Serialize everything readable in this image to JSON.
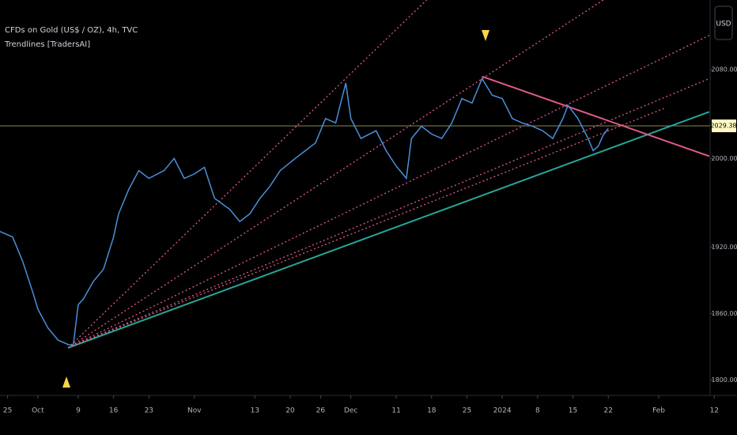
{
  "chart_data": {
    "type": "line",
    "title": "CFDs on Gold (US$ / OZ), 4h, TVC",
    "subtitle": "Trendlines [TradersAI]",
    "currency": "USD",
    "xlim": [
      -1.5,
      144.5
    ],
    "xticks": [
      {
        "value": 0,
        "label": "25"
      },
      {
        "value": 6,
        "label": "Oct"
      },
      {
        "value": 14,
        "label": "9"
      },
      {
        "value": 21,
        "label": "16"
      },
      {
        "value": 28,
        "label": "23"
      },
      {
        "value": 37,
        "label": "Nov"
      },
      {
        "value": 49,
        "label": "13"
      },
      {
        "value": 56,
        "label": "20"
      },
      {
        "value": 62,
        "label": "26"
      },
      {
        "value": 68,
        "label": "Dec"
      },
      {
        "value": 77,
        "label": "11"
      },
      {
        "value": 84,
        "label": "18"
      },
      {
        "value": 91,
        "label": "25"
      },
      {
        "value": 98,
        "label": "2024"
      },
      {
        "value": 105,
        "label": "8"
      },
      {
        "value": 112,
        "label": "15"
      },
      {
        "value": 119,
        "label": "22"
      },
      {
        "value": 129,
        "label": "Feb"
      },
      {
        "value": 140,
        "label": "12"
      }
    ],
    "ylim": [
      1786,
      2143
    ],
    "yticks": [
      {
        "value": 1800,
        "label": "1800.00"
      },
      {
        "value": 1860,
        "label": "1860.00"
      },
      {
        "value": 1920,
        "label": "1920.00"
      },
      {
        "value": 2000,
        "label": "2000.00"
      },
      {
        "value": 2080,
        "label": "2080.00"
      }
    ],
    "series": [
      {
        "color": "#4a90d9",
        "x": [
          -1.5,
          1,
          3,
          5,
          6,
          8,
          10,
          12,
          13,
          14,
          15,
          17,
          19,
          21,
          22,
          24,
          26,
          28,
          31,
          33,
          35,
          37,
          39,
          41,
          44,
          46,
          48,
          50,
          52,
          54,
          57,
          59,
          61,
          63,
          65,
          67,
          68,
          70,
          73,
          75,
          77,
          79,
          80,
          82,
          84,
          86,
          88,
          90,
          92,
          94,
          96,
          98,
          100,
          102,
          104,
          106,
          108,
          110,
          111,
          113,
          115,
          116,
          117,
          118,
          119
        ],
        "values": [
          1934,
          1929,
          1907,
          1879,
          1864,
          1847,
          1836,
          1832,
          1831,
          1868,
          1873,
          1889,
          1900,
          1929,
          1950,
          1972,
          1989,
          1982,
          1989,
          2000,
          1982,
          1986,
          1992,
          1964,
          1954,
          1943,
          1950,
          1964,
          1975,
          1989,
          2000,
          2007,
          2014,
          2036,
          2032,
          2068,
          2036,
          2018,
          2025,
          2007,
          1993,
          1982,
          2018,
          2029,
          2022,
          2018,
          2032,
          2054,
          2050,
          2072,
          2057,
          2054,
          2036,
          2032,
          2029,
          2025,
          2018,
          2036,
          2048,
          2036,
          2018,
          2007,
          2011,
          2021,
          2027
        ]
      }
    ],
    "trendlines": [
      {
        "x": [
          12,
          139
        ],
        "values": [
          1829,
          2042
        ],
        "color": "#26a69a",
        "style": "solid"
      },
      {
        "x": [
          94,
          139
        ],
        "values": [
          2074,
          2002
        ],
        "color": "#e05a8a",
        "style": "solid"
      },
      {
        "x": [
          12,
          83
        ],
        "values": [
          1829,
          2143
        ],
        "color": "#e05a8a",
        "style": "dotted"
      },
      {
        "x": [
          12,
          118
        ],
        "values": [
          1829,
          2143
        ],
        "color": "#e05a8a",
        "style": "dotted"
      },
      {
        "x": [
          12,
          139
        ],
        "values": [
          1829,
          2111
        ],
        "color": "#e05a8a",
        "style": "dotted"
      },
      {
        "x": [
          12,
          139
        ],
        "values": [
          1829,
          2072
        ],
        "color": "#e05a8a",
        "style": "dotted"
      },
      {
        "x": [
          12,
          130
        ],
        "values": [
          1829,
          2045
        ],
        "color": "#e05a8a",
        "style": "dotted"
      }
    ],
    "last_price": 2029.38,
    "last_price_color": "#fff9c4"
  }
}
